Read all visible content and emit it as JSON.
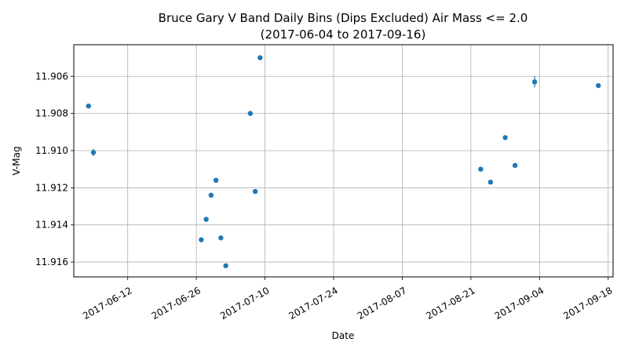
{
  "chart_data": {
    "type": "scatter",
    "title_line1": "Bruce Gary V Band Daily Bins (Dips Excluded) Air Mass <= 2.0",
    "title_line2": "(2017-06-04 to 2017-09-16)",
    "xlabel": "Date",
    "ylabel": "V-Mag",
    "y_inverted": true,
    "ylim": [
      11.9043,
      11.9168
    ],
    "xlim": [
      "2017-06-01",
      "2017-09-19"
    ],
    "x_ticks": [
      "2017-06-12",
      "2017-06-26",
      "2017-07-10",
      "2017-07-24",
      "2017-08-07",
      "2017-08-21",
      "2017-09-04",
      "2017-09-18"
    ],
    "y_ticks": [
      11.906,
      11.908,
      11.91,
      11.912,
      11.914,
      11.916
    ],
    "grid": true,
    "marker_color": "#1f77b4",
    "points": [
      {
        "x": "2017-06-04",
        "y": 11.9076,
        "err": 0.0001
      },
      {
        "x": "2017-06-05",
        "y": 11.9101,
        "err": 0.0002
      },
      {
        "x": "2017-06-27",
        "y": 11.9148,
        "err": 0.0001
      },
      {
        "x": "2017-06-28",
        "y": 11.9137,
        "err": 0.0001
      },
      {
        "x": "2017-06-29",
        "y": 11.9124,
        "err": 0.0001
      },
      {
        "x": "2017-06-30",
        "y": 11.9116,
        "err": 0.0001
      },
      {
        "x": "2017-07-01",
        "y": 11.9147,
        "err": 0.0001
      },
      {
        "x": "2017-07-02",
        "y": 11.9162,
        "err": 0.0001
      },
      {
        "x": "2017-07-07",
        "y": 11.908,
        "err": 0.0001
      },
      {
        "x": "2017-07-08",
        "y": 11.9122,
        "err": 0.0001
      },
      {
        "x": "2017-07-09",
        "y": 11.905,
        "err": 0.0001
      },
      {
        "x": "2017-08-23",
        "y": 11.911,
        "err": 0.0001
      },
      {
        "x": "2017-08-25",
        "y": 11.9117,
        "err": 0.0001
      },
      {
        "x": "2017-08-28",
        "y": 11.9093,
        "err": 0.0001
      },
      {
        "x": "2017-08-30",
        "y": 11.9108,
        "err": 0.0001
      },
      {
        "x": "2017-09-03",
        "y": 11.9063,
        "err": 0.0003
      },
      {
        "x": "2017-09-16",
        "y": 11.9065,
        "err": 0.0001
      }
    ]
  }
}
